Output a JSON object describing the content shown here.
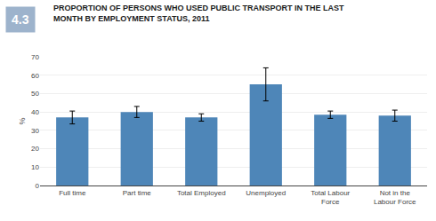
{
  "chart_data": {
    "type": "bar",
    "title": "PROPORTION OF PERSONS WHO USED PUBLIC TRANSPORT IN THE LAST\nMONTH BY EMPLOYMENT STATUS, 2011",
    "categories": [
      "Full time",
      "Part time",
      "Total Employed",
      "Unemployed",
      "Total Labour\nForce",
      "Not in the\nLabour Force"
    ],
    "values": [
      37,
      40,
      37,
      55,
      38.5,
      38
    ],
    "errors": [
      3.5,
      3.0,
      2.0,
      9.0,
      2.0,
      3.0
    ],
    "color": "#4E86B8",
    "ylabel": "%",
    "ylim": [
      0,
      70
    ],
    "yticks": [
      0,
      10,
      20,
      30,
      40,
      50,
      60,
      70
    ],
    "grid": true,
    "annotations": [
      {
        "text": "4.3",
        "color": "#9DB3CC"
      }
    ]
  }
}
